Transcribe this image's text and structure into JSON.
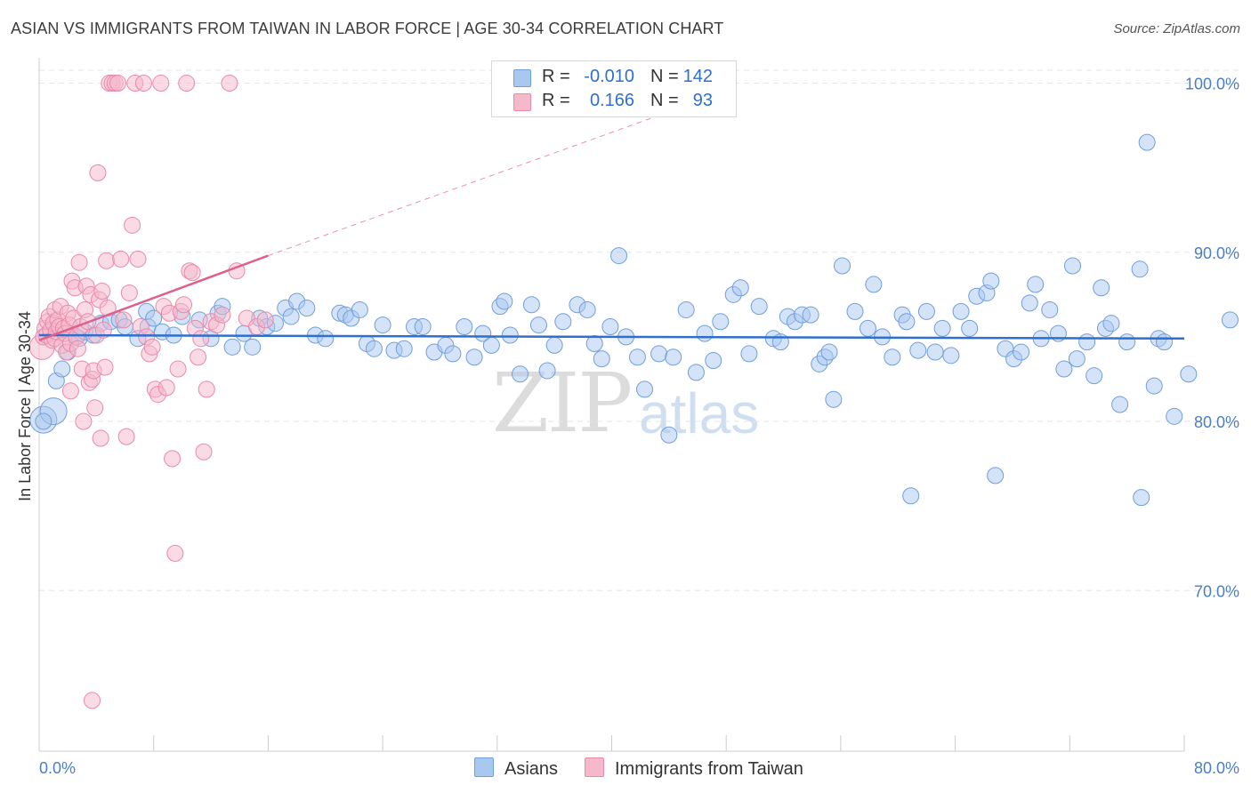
{
  "title": "ASIAN VS IMMIGRANTS FROM TAIWAN IN LABOR FORCE | AGE 30-34 CORRELATION CHART",
  "source": "Source: ZipAtlas.com",
  "watermark": {
    "part1": "ZIP",
    "part2": "atlas"
  },
  "legend": {
    "rows": [
      {
        "r_label": "R =",
        "r_value": "-0.010",
        "n_label": "N =",
        "n_value": "142"
      },
      {
        "r_label": "R =",
        "r_value": "0.166",
        "n_label": "N =",
        "n_value": "93"
      }
    ]
  },
  "colors": {
    "asian_fill": "#a9c8ef",
    "asian_stroke": "#6f9fdc",
    "asian_line": "#2f6fce",
    "taiwan_fill": "#f6b8cb",
    "taiwan_stroke": "#e88aa8",
    "taiwan_line": "#e0608c",
    "grid": "#e6e6e6",
    "axis": "#cccccc"
  },
  "chart_data": {
    "type": "scatter",
    "title": "ASIAN VS IMMIGRANTS FROM TAIWAN IN LABOR FORCE | AGE 30-34 CORRELATION CHART",
    "xlabel": "",
    "ylabel": "In Labor Force | Age 30-34",
    "xlim": [
      0,
      80
    ],
    "ylim": [
      60.5,
      101.5
    ],
    "x_tick_labels": [
      "0.0%",
      "80.0%"
    ],
    "y_ticks": [
      70,
      80,
      90,
      100
    ],
    "y_tick_labels": [
      "70.0%",
      "80.0%",
      "90.0%",
      "100.0%"
    ],
    "grid": true,
    "series": [
      {
        "name": "Asians",
        "r": -0.01,
        "n": 142,
        "trend": {
          "x": [
            0,
            80
          ],
          "y": [
            85.1,
            84.9
          ]
        },
        "points": [
          [
            0.3,
            80.1
          ],
          [
            1.0,
            80.6
          ],
          [
            1.2,
            82.4
          ],
          [
            1.6,
            83.1
          ],
          [
            2.0,
            84.1
          ],
          [
            2.6,
            85.0
          ],
          [
            2.8,
            84.9
          ],
          [
            3.2,
            85.3
          ],
          [
            3.8,
            85.1
          ],
          [
            4.3,
            85.8
          ],
          [
            5.0,
            85.9
          ],
          [
            5.6,
            86.0
          ],
          [
            6.0,
            85.6
          ],
          [
            6.9,
            84.9
          ],
          [
            7.6,
            85.6
          ],
          [
            7.5,
            86.5
          ],
          [
            8.0,
            86.1
          ],
          [
            8.6,
            85.3
          ],
          [
            9.4,
            85.1
          ],
          [
            10.0,
            86.2
          ],
          [
            11.2,
            86.0
          ],
          [
            12.0,
            84.9
          ],
          [
            12.5,
            86.4
          ],
          [
            12.8,
            86.8
          ],
          [
            13.5,
            84.4
          ],
          [
            14.3,
            85.2
          ],
          [
            14.9,
            84.4
          ],
          [
            15.4,
            86.1
          ],
          [
            15.9,
            85.6
          ],
          [
            16.5,
            85.8
          ],
          [
            17.2,
            86.7
          ],
          [
            17.6,
            86.2
          ],
          [
            18.0,
            87.1
          ],
          [
            18.7,
            86.7
          ],
          [
            19.3,
            85.1
          ],
          [
            20.0,
            84.9
          ],
          [
            21.0,
            86.4
          ],
          [
            21.4,
            86.3
          ],
          [
            21.8,
            86.1
          ],
          [
            22.4,
            86.6
          ],
          [
            22.9,
            84.6
          ],
          [
            23.4,
            84.3
          ],
          [
            24.0,
            85.7
          ],
          [
            24.8,
            84.2
          ],
          [
            25.5,
            84.3
          ],
          [
            26.2,
            85.6
          ],
          [
            26.8,
            85.6
          ],
          [
            27.6,
            84.1
          ],
          [
            28.4,
            84.5
          ],
          [
            28.9,
            84.0
          ],
          [
            29.7,
            85.6
          ],
          [
            30.4,
            83.8
          ],
          [
            31.0,
            85.2
          ],
          [
            31.6,
            84.5
          ],
          [
            32.2,
            86.8
          ],
          [
            32.5,
            87.1
          ],
          [
            32.9,
            85.1
          ],
          [
            33.6,
            82.8
          ],
          [
            34.4,
            86.9
          ],
          [
            34.9,
            85.7
          ],
          [
            35.5,
            83.0
          ],
          [
            36.0,
            84.5
          ],
          [
            36.6,
            85.9
          ],
          [
            37.6,
            86.9
          ],
          [
            38.3,
            86.6
          ],
          [
            38.8,
            84.6
          ],
          [
            39.3,
            83.7
          ],
          [
            39.9,
            85.6
          ],
          [
            40.5,
            89.8
          ],
          [
            41.0,
            85.0
          ],
          [
            41.8,
            83.8
          ],
          [
            42.3,
            81.9
          ],
          [
            43.3,
            84.0
          ],
          [
            44.0,
            79.2
          ],
          [
            44.3,
            83.8
          ],
          [
            45.2,
            86.6
          ],
          [
            45.9,
            82.9
          ],
          [
            46.5,
            85.2
          ],
          [
            47.1,
            83.6
          ],
          [
            47.6,
            85.9
          ],
          [
            48.5,
            87.5
          ],
          [
            49.0,
            87.9
          ],
          [
            49.6,
            84.0
          ],
          [
            50.3,
            86.8
          ],
          [
            51.3,
            84.9
          ],
          [
            51.8,
            84.7
          ],
          [
            52.3,
            86.2
          ],
          [
            52.8,
            85.9
          ],
          [
            53.3,
            86.3
          ],
          [
            53.9,
            86.3
          ],
          [
            54.5,
            83.4
          ],
          [
            54.9,
            83.8
          ],
          [
            55.2,
            84.1
          ],
          [
            55.5,
            81.3
          ],
          [
            56.1,
            89.2
          ],
          [
            57.0,
            86.5
          ],
          [
            57.9,
            85.5
          ],
          [
            58.3,
            88.1
          ],
          [
            58.9,
            85.0
          ],
          [
            59.6,
            83.8
          ],
          [
            60.3,
            86.3
          ],
          [
            60.6,
            85.9
          ],
          [
            60.9,
            75.6
          ],
          [
            61.4,
            84.2
          ],
          [
            62.0,
            86.5
          ],
          [
            62.6,
            84.1
          ],
          [
            63.1,
            85.5
          ],
          [
            63.7,
            83.9
          ],
          [
            64.4,
            86.5
          ],
          [
            65.0,
            85.5
          ],
          [
            65.5,
            87.4
          ],
          [
            66.2,
            87.6
          ],
          [
            66.5,
            88.3
          ],
          [
            66.8,
            76.8
          ],
          [
            67.5,
            84.3
          ],
          [
            68.1,
            83.7
          ],
          [
            68.6,
            84.1
          ],
          [
            69.2,
            87.0
          ],
          [
            69.6,
            88.1
          ],
          [
            70.0,
            84.9
          ],
          [
            70.6,
            86.6
          ],
          [
            71.2,
            85.2
          ],
          [
            71.6,
            83.1
          ],
          [
            72.2,
            89.2
          ],
          [
            72.5,
            83.7
          ],
          [
            73.2,
            84.7
          ],
          [
            73.7,
            82.7
          ],
          [
            74.2,
            87.9
          ],
          [
            74.5,
            85.5
          ],
          [
            74.9,
            85.8
          ],
          [
            75.5,
            81.0
          ],
          [
            76.0,
            84.7
          ],
          [
            76.9,
            89.0
          ],
          [
            77.0,
            75.5
          ],
          [
            77.4,
            96.5
          ],
          [
            77.9,
            82.1
          ],
          [
            78.2,
            84.9
          ],
          [
            78.6,
            84.7
          ],
          [
            79.3,
            80.3
          ],
          [
            80.3,
            82.8
          ],
          [
            83.2,
            86.0
          ],
          [
            0.3,
            80.0
          ]
        ]
      },
      {
        "name": "Immigrants from Taiwan",
        "r": 0.166,
        "n": 93,
        "trend": {
          "x": [
            0,
            16.0
          ],
          "y": [
            84.8,
            89.8
          ]
        },
        "trend_dashed": {
          "x": [
            16.0,
            43.0
          ],
          "y": [
            89.8,
            98.0
          ]
        },
        "points": [
          [
            0.2,
            84.4
          ],
          [
            0.3,
            85.0
          ],
          [
            0.4,
            85.5
          ],
          [
            0.5,
            85.1
          ],
          [
            0.6,
            85.9
          ],
          [
            0.7,
            86.2
          ],
          [
            0.8,
            85.4
          ],
          [
            0.9,
            84.8
          ],
          [
            1.0,
            85.8
          ],
          [
            1.1,
            86.6
          ],
          [
            1.1,
            84.9
          ],
          [
            1.2,
            85.3
          ],
          [
            1.3,
            86.0
          ],
          [
            1.4,
            85.6
          ],
          [
            1.5,
            86.8
          ],
          [
            1.6,
            84.5
          ],
          [
            1.7,
            85.5
          ],
          [
            1.8,
            85.2
          ],
          [
            1.9,
            84.1
          ],
          [
            2.0,
            86.4
          ],
          [
            2.1,
            85.7
          ],
          [
            2.2,
            84.6
          ],
          [
            2.3,
            88.3
          ],
          [
            2.4,
            86.1
          ],
          [
            2.5,
            87.9
          ],
          [
            2.6,
            85.0
          ],
          [
            2.7,
            84.3
          ],
          [
            2.8,
            89.4
          ],
          [
            2.9,
            85.6
          ],
          [
            3.0,
            83.1
          ],
          [
            3.1,
            80.0
          ],
          [
            3.2,
            86.6
          ],
          [
            3.3,
            88.0
          ],
          [
            3.4,
            85.9
          ],
          [
            3.5,
            82.3
          ],
          [
            3.6,
            87.5
          ],
          [
            3.7,
            82.5
          ],
          [
            3.8,
            83.0
          ],
          [
            3.9,
            80.8
          ],
          [
            4.0,
            85.1
          ],
          [
            4.1,
            94.7
          ],
          [
            4.2,
            87.2
          ],
          [
            4.3,
            79.0
          ],
          [
            4.4,
            87.7
          ],
          [
            4.5,
            85.4
          ],
          [
            4.6,
            83.2
          ],
          [
            4.7,
            89.5
          ],
          [
            4.8,
            86.7
          ],
          [
            4.9,
            100.0
          ],
          [
            5.1,
            100.0
          ],
          [
            5.3,
            100.0
          ],
          [
            5.5,
            100.0
          ],
          [
            5.7,
            89.6
          ],
          [
            5.9,
            86.0
          ],
          [
            6.1,
            79.1
          ],
          [
            6.3,
            87.6
          ],
          [
            6.5,
            91.6
          ],
          [
            6.7,
            100.0
          ],
          [
            6.9,
            89.6
          ],
          [
            7.1,
            85.6
          ],
          [
            7.3,
            100.0
          ],
          [
            7.5,
            85.0
          ],
          [
            7.7,
            84.0
          ],
          [
            7.9,
            84.4
          ],
          [
            8.1,
            81.9
          ],
          [
            8.3,
            81.6
          ],
          [
            8.5,
            100.0
          ],
          [
            8.7,
            86.8
          ],
          [
            8.9,
            82.0
          ],
          [
            9.1,
            86.4
          ],
          [
            9.3,
            77.8
          ],
          [
            9.5,
            72.2
          ],
          [
            9.7,
            83.1
          ],
          [
            9.9,
            86.5
          ],
          [
            10.1,
            86.9
          ],
          [
            10.3,
            100.0
          ],
          [
            10.5,
            88.9
          ],
          [
            10.7,
            88.8
          ],
          [
            10.9,
            85.5
          ],
          [
            11.1,
            83.8
          ],
          [
            11.3,
            84.9
          ],
          [
            11.5,
            78.2
          ],
          [
            11.7,
            81.9
          ],
          [
            12.0,
            85.9
          ],
          [
            12.4,
            85.7
          ],
          [
            12.8,
            86.3
          ],
          [
            13.3,
            100.0
          ],
          [
            13.8,
            88.9
          ],
          [
            14.5,
            86.1
          ],
          [
            15.2,
            85.6
          ],
          [
            15.8,
            86.0
          ],
          [
            3.7,
            63.5
          ],
          [
            2.2,
            81.8
          ]
        ]
      }
    ]
  },
  "bottom_legend": {
    "asians": "Asians",
    "taiwan": "Immigrants from Taiwan"
  },
  "axes": {
    "x_min_label": "0.0%",
    "x_max_label": "80.0%"
  }
}
